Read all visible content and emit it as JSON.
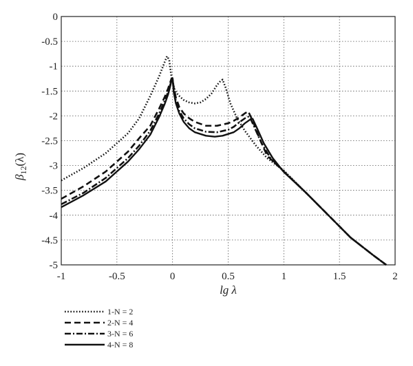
{
  "chart_data": {
    "type": "line",
    "xlabel": "lg λ",
    "ylabel": "β",
    "ylabel_sub": "12",
    "ylabel_suffix": "(λ)",
    "xlim": [
      -1,
      2
    ],
    "ylim": [
      -5,
      0
    ],
    "grid": true,
    "legend_placement": "below",
    "x_ticks": [
      {
        "v": -1,
        "label": "-1"
      },
      {
        "v": -0.5,
        "label": "-0.5"
      },
      {
        "v": 0,
        "label": "0"
      },
      {
        "v": 0.5,
        "label": "0.5"
      },
      {
        "v": 1,
        "label": "1"
      },
      {
        "v": 1.5,
        "label": "1.5"
      },
      {
        "v": 2,
        "label": "2"
      }
    ],
    "y_ticks": [
      {
        "v": 0,
        "label": "0"
      },
      {
        "v": -0.5,
        "label": "-0.5"
      },
      {
        "v": -1,
        "label": "-1"
      },
      {
        "v": -1.5,
        "label": "-1.5"
      },
      {
        "v": -2,
        "label": "-2"
      },
      {
        "v": -2.5,
        "label": "-2.5"
      },
      {
        "v": -3,
        "label": "-3"
      },
      {
        "v": -3.5,
        "label": "-3.5"
      },
      {
        "v": -4,
        "label": "-4"
      },
      {
        "v": -4.5,
        "label": "-4.5"
      },
      {
        "v": -5,
        "label": "-5"
      }
    ],
    "series": [
      {
        "name": "1-N = 2",
        "dash": "dotted",
        "x": [
          -1,
          -0.8,
          -0.6,
          -0.4,
          -0.3,
          -0.2,
          -0.12,
          -0.08,
          -0.05,
          -0.03,
          -0.01,
          0.02,
          0.05,
          0.1,
          0.15,
          0.2,
          0.25,
          0.3,
          0.35,
          0.4,
          0.43,
          0.45,
          0.48,
          0.52,
          0.58,
          0.65,
          0.75,
          0.85,
          1.0,
          1.2,
          1.4,
          1.6,
          1.8,
          1.92
        ],
        "y": [
          -3.3,
          -3.05,
          -2.75,
          -2.35,
          -2.05,
          -1.6,
          -1.2,
          -0.97,
          -0.8,
          -0.87,
          -1.22,
          -1.48,
          -1.58,
          -1.68,
          -1.73,
          -1.75,
          -1.73,
          -1.66,
          -1.55,
          -1.38,
          -1.3,
          -1.27,
          -1.45,
          -1.75,
          -2.05,
          -2.3,
          -2.6,
          -2.85,
          -3.1,
          -3.55,
          -4.0,
          -4.45,
          -4.8,
          -5.0
        ]
      },
      {
        "name": "2-N = 4",
        "dash": "dashed",
        "x": [
          -1,
          -0.8,
          -0.6,
          -0.4,
          -0.3,
          -0.2,
          -0.12,
          -0.07,
          -0.04,
          -0.02,
          -0.01,
          0.0,
          0.01,
          0.03,
          0.06,
          0.1,
          0.15,
          0.2,
          0.3,
          0.4,
          0.5,
          0.55,
          0.6,
          0.65,
          0.68,
          0.72,
          0.78,
          0.85,
          1.0,
          1.2,
          1.4,
          1.6,
          1.8,
          1.92
        ],
        "y": [
          -3.67,
          -3.42,
          -3.12,
          -2.72,
          -2.45,
          -2.2,
          -1.85,
          -1.62,
          -1.45,
          -1.32,
          -1.25,
          -1.25,
          -1.42,
          -1.63,
          -1.82,
          -1.95,
          -2.05,
          -2.12,
          -2.2,
          -2.2,
          -2.15,
          -2.1,
          -2.03,
          -1.95,
          -1.91,
          -2.1,
          -2.45,
          -2.8,
          -3.12,
          -3.55,
          -4.0,
          -4.45,
          -4.8,
          -5.0
        ]
      },
      {
        "name": "3-N = 6",
        "dash": "dashdot",
        "x": [
          -1,
          -0.8,
          -0.6,
          -0.4,
          -0.3,
          -0.2,
          -0.12,
          -0.07,
          -0.04,
          -0.02,
          -0.01,
          0.0,
          0.01,
          0.03,
          0.06,
          0.1,
          0.15,
          0.2,
          0.3,
          0.4,
          0.5,
          0.55,
          0.6,
          0.65,
          0.68,
          0.7,
          0.75,
          0.8,
          0.88,
          1.0,
          1.2,
          1.4,
          1.6,
          1.8,
          1.92
        ],
        "y": [
          -3.78,
          -3.55,
          -3.25,
          -2.85,
          -2.6,
          -2.3,
          -1.95,
          -1.7,
          -1.52,
          -1.37,
          -1.28,
          -1.24,
          -1.48,
          -1.7,
          -1.9,
          -2.05,
          -2.17,
          -2.25,
          -2.32,
          -2.33,
          -2.28,
          -2.22,
          -2.13,
          -2.05,
          -2.02,
          -2.05,
          -2.3,
          -2.55,
          -2.85,
          -3.12,
          -3.55,
          -4.0,
          -4.45,
          -4.8,
          -5.0
        ]
      },
      {
        "name": "4-N = 8",
        "dash": "solid",
        "x": [
          -1,
          -0.8,
          -0.6,
          -0.4,
          -0.3,
          -0.2,
          -0.12,
          -0.07,
          -0.04,
          -0.02,
          -0.01,
          0.0,
          0.01,
          0.03,
          0.06,
          0.1,
          0.15,
          0.2,
          0.3,
          0.38,
          0.45,
          0.55,
          0.6,
          0.65,
          0.7,
          0.72,
          0.76,
          0.82,
          0.9,
          1.0,
          1.2,
          1.4,
          1.6,
          1.8,
          1.92
        ],
        "y": [
          -3.84,
          -3.6,
          -3.32,
          -2.92,
          -2.67,
          -2.38,
          -2.02,
          -1.76,
          -1.57,
          -1.4,
          -1.3,
          -1.24,
          -1.52,
          -1.75,
          -1.95,
          -2.12,
          -2.25,
          -2.33,
          -2.4,
          -2.42,
          -2.4,
          -2.33,
          -2.25,
          -2.15,
          -2.07,
          -2.06,
          -2.25,
          -2.55,
          -2.85,
          -3.13,
          -3.55,
          -4.0,
          -4.45,
          -4.8,
          -5.0
        ]
      }
    ]
  }
}
